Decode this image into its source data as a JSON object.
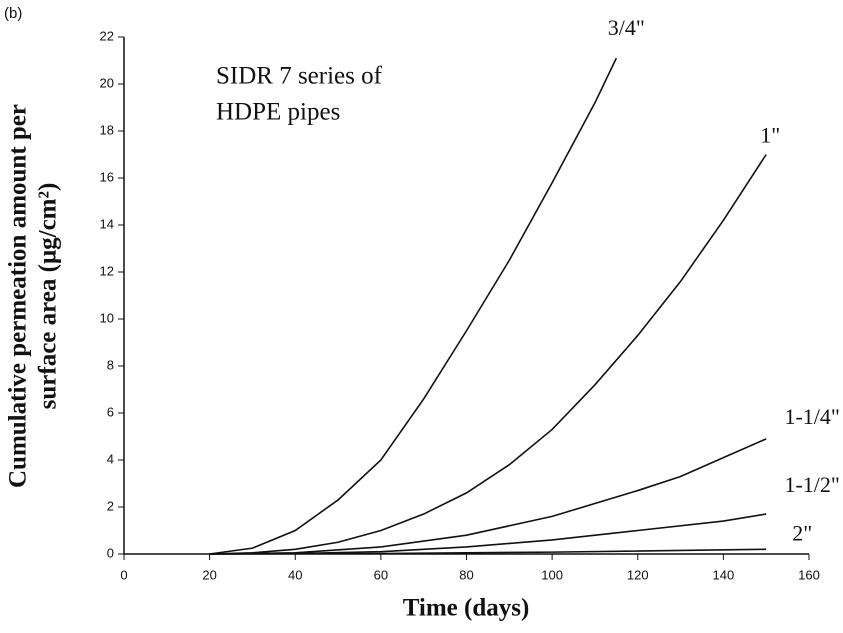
{
  "chart_data": {
    "type": "line",
    "panel_label": "(b)",
    "annotation": [
      "SIDR 7 series of",
      "HDPE pipes"
    ],
    "x_label": "Time (days)",
    "y_label": [
      "Cumulative permeation amount per",
      "surface area (μg/cm²)"
    ],
    "xlim": [
      0,
      160
    ],
    "xticks": [
      0,
      20,
      40,
      60,
      80,
      100,
      120,
      140,
      160
    ],
    "ylim": [
      0,
      22
    ],
    "yticks": [
      0,
      2,
      4,
      6,
      8,
      10,
      12,
      14,
      16,
      18,
      20,
      22
    ],
    "series": [
      {
        "name": "3/4\"",
        "color": "#111111",
        "x": [
          20,
          30,
          40,
          50,
          60,
          70,
          80,
          90,
          100,
          110,
          115
        ],
        "values": [
          0,
          0.25,
          1.0,
          2.3,
          4.0,
          6.6,
          9.5,
          12.5,
          15.8,
          19.2,
          21.1
        ]
      },
      {
        "name": "1\"",
        "color": "#111111",
        "x": [
          20,
          30,
          40,
          50,
          60,
          70,
          80,
          90,
          100,
          110,
          120,
          130,
          140,
          150
        ],
        "values": [
          0,
          0.05,
          0.2,
          0.5,
          1.0,
          1.7,
          2.6,
          3.8,
          5.3,
          7.2,
          9.3,
          11.6,
          14.2,
          17.0
        ]
      },
      {
        "name": "1-1/4\"",
        "color": "#111111",
        "x": [
          20,
          40,
          60,
          80,
          100,
          120,
          130,
          140,
          150
        ],
        "values": [
          0,
          0.05,
          0.3,
          0.8,
          1.6,
          2.7,
          3.3,
          4.1,
          4.9
        ]
      },
      {
        "name": "1-1/2\"",
        "color": "#111111",
        "x": [
          20,
          40,
          60,
          80,
          100,
          120,
          140,
          150
        ],
        "values": [
          0,
          0.02,
          0.1,
          0.3,
          0.6,
          1.0,
          1.4,
          1.7
        ]
      },
      {
        "name": "2\"",
        "color": "#111111",
        "x": [
          20,
          60,
          100,
          150
        ],
        "values": [
          0,
          0.02,
          0.08,
          0.2
        ]
      }
    ]
  }
}
